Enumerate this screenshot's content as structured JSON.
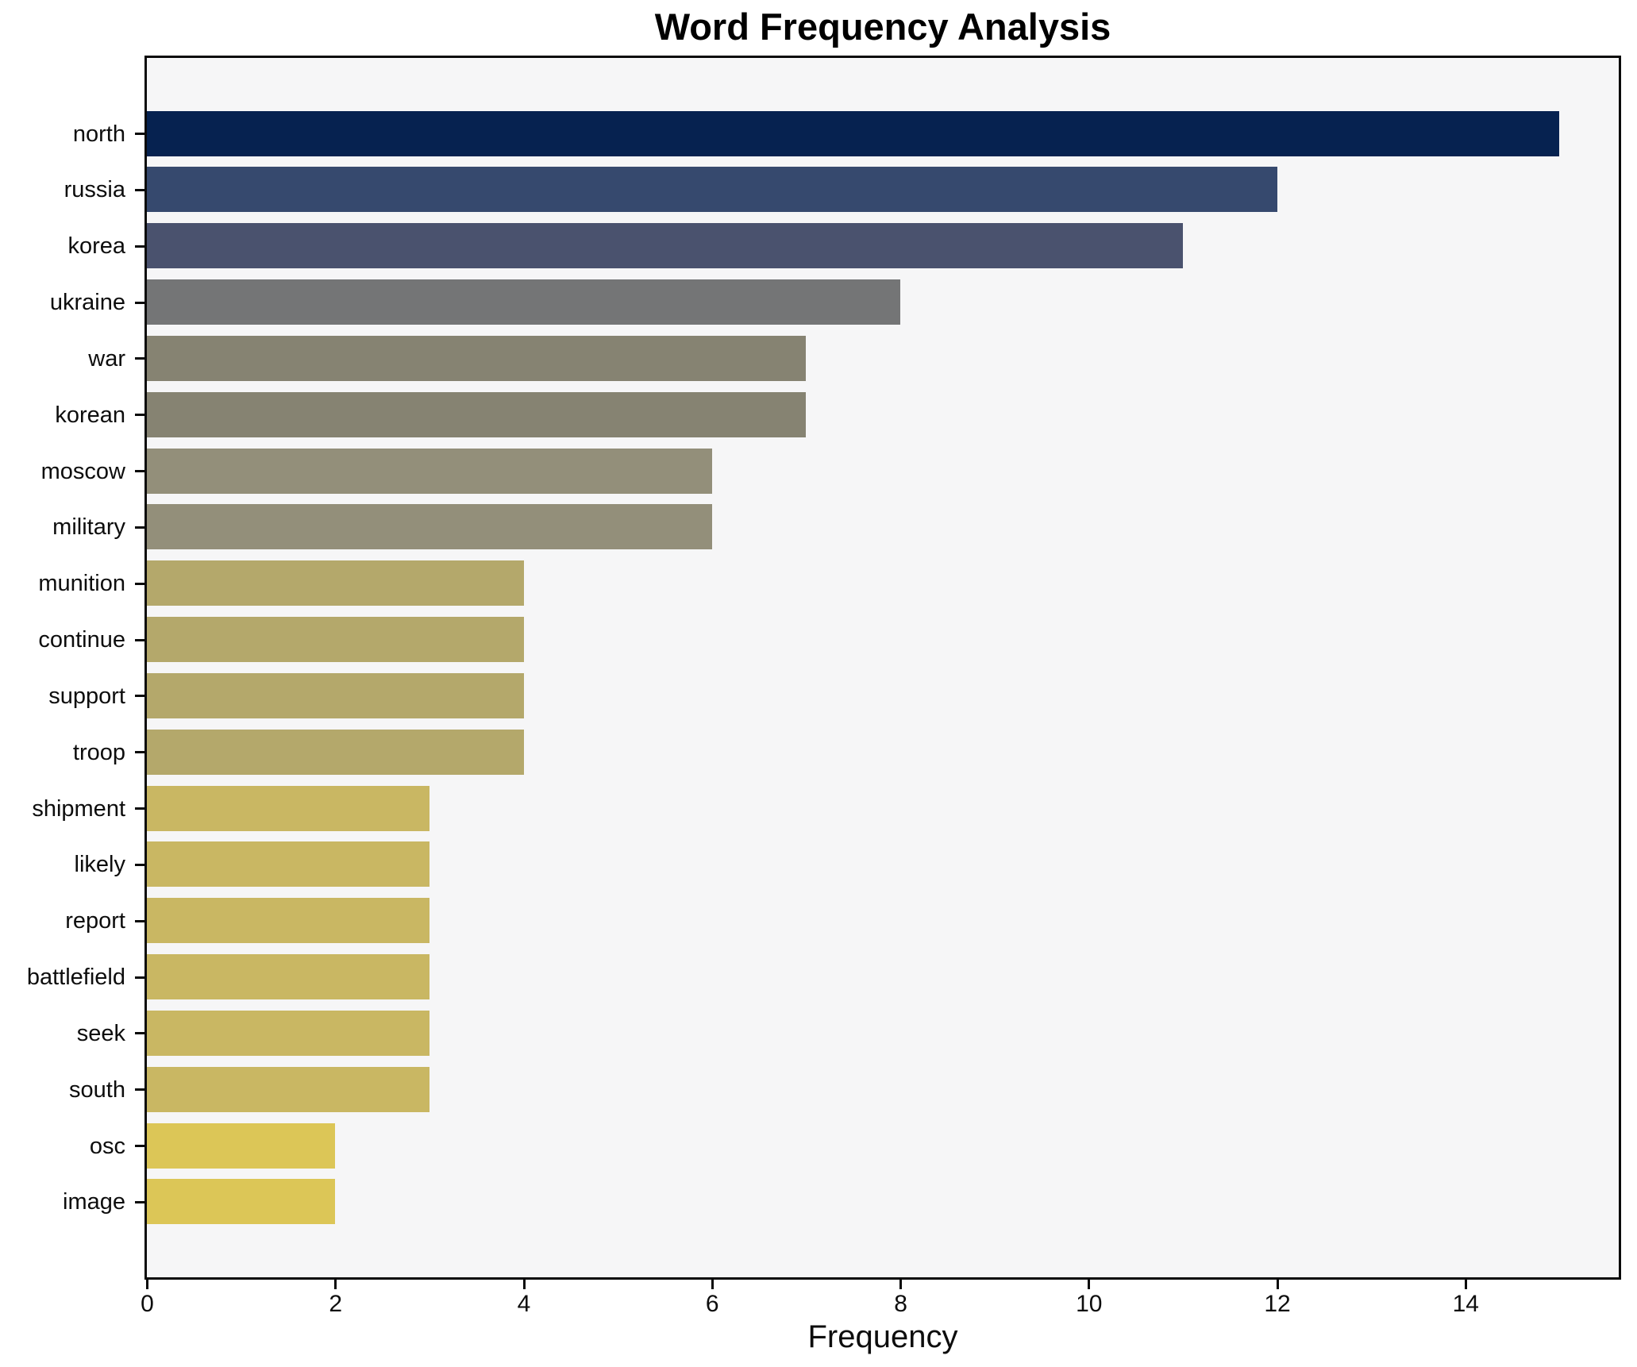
{
  "chart_data": {
    "type": "bar",
    "orientation": "horizontal",
    "title": "Word Frequency Analysis",
    "xlabel": "Frequency",
    "ylabel": "",
    "categories": [
      "north",
      "russia",
      "korea",
      "ukraine",
      "war",
      "korean",
      "moscow",
      "military",
      "munition",
      "continue",
      "support",
      "troop",
      "shipment",
      "likely",
      "report",
      "battlefield",
      "seek",
      "south",
      "osc",
      "image"
    ],
    "values": [
      15,
      12,
      11,
      8,
      7,
      7,
      6,
      6,
      4,
      4,
      4,
      4,
      3,
      3,
      3,
      3,
      3,
      3,
      2,
      2
    ],
    "bar_colors": [
      "#062250",
      "#36496e",
      "#4a526e",
      "#747576",
      "#868372",
      "#868372",
      "#938f7a",
      "#938f7a",
      "#b4a86b",
      "#b4a86b",
      "#b4a86b",
      "#b4a86b",
      "#c9b763",
      "#c9b763",
      "#c9b763",
      "#c9b763",
      "#c9b763",
      "#c9b763",
      "#dcc657",
      "#dcc657"
    ],
    "xlim": [
      0,
      15.62
    ],
    "xticks": [
      0,
      2,
      4,
      6,
      8,
      10,
      12,
      14
    ],
    "grid": false,
    "legend_position": "none",
    "colormap": "cividis-reversed-by-value",
    "plot_background": "#f6f6f7",
    "figure_background": "#ffffff",
    "spine_color": "#0a0a0a",
    "text_color": "#0d0d0d"
  }
}
